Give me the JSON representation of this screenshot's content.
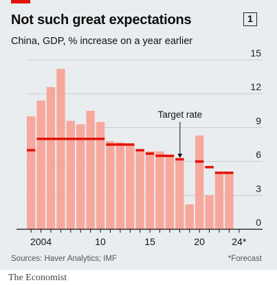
{
  "header": {
    "title": "Not such great expectations",
    "chart_number": "1",
    "subtitle": "China, GDP, % increase on a year earlier"
  },
  "footer": {
    "sources": "Sources: Haver Analytics; IMF",
    "footnote": "*Forecast",
    "brand": "The Economist"
  },
  "colors": {
    "bar": "#f7a89c",
    "target": "#e3120b",
    "panel": "#e9edf0",
    "accent": "#e3120b"
  },
  "chart_data": {
    "type": "bar",
    "title": "Not such great expectations",
    "subtitle": "China, GDP, % increase on a year earlier",
    "x": [
      2003,
      2004,
      2005,
      2006,
      2007,
      2008,
      2009,
      2010,
      2011,
      2012,
      2013,
      2014,
      2015,
      2016,
      2017,
      2018,
      2019,
      2020,
      2021,
      2022,
      2023,
      2024
    ],
    "series": [
      {
        "values": [
          10.0,
          11.4,
          12.6,
          14.2,
          9.6,
          9.3,
          10.5,
          9.5,
          7.8,
          7.7,
          7.4,
          7.0,
          6.9,
          6.9,
          6.6,
          6.1,
          2.2,
          8.3,
          3.0,
          5.0,
          5.0,
          null
        ]
      }
    ],
    "target_rate_label": "Target rate",
    "target_rate": [
      7.0,
      8.0,
      8.0,
      8.0,
      8.0,
      8.0,
      8.0,
      8.0,
      7.5,
      7.5,
      7.5,
      7.0,
      6.7,
      6.5,
      6.5,
      6.2,
      null,
      6.0,
      5.5,
      5.0,
      5.0,
      null
    ],
    "x_tick_labels": [
      {
        "x": 2004,
        "label": "2004"
      },
      {
        "x": 2010,
        "label": "10"
      },
      {
        "x": 2015,
        "label": "15"
      },
      {
        "x": 2020,
        "label": "20"
      },
      {
        "x": 2024,
        "label": "24*"
      }
    ],
    "y_ticks": [
      0,
      3,
      6,
      9,
      12,
      15
    ],
    "ylim": [
      0,
      15
    ],
    "axis_side": "right",
    "grid": true
  }
}
